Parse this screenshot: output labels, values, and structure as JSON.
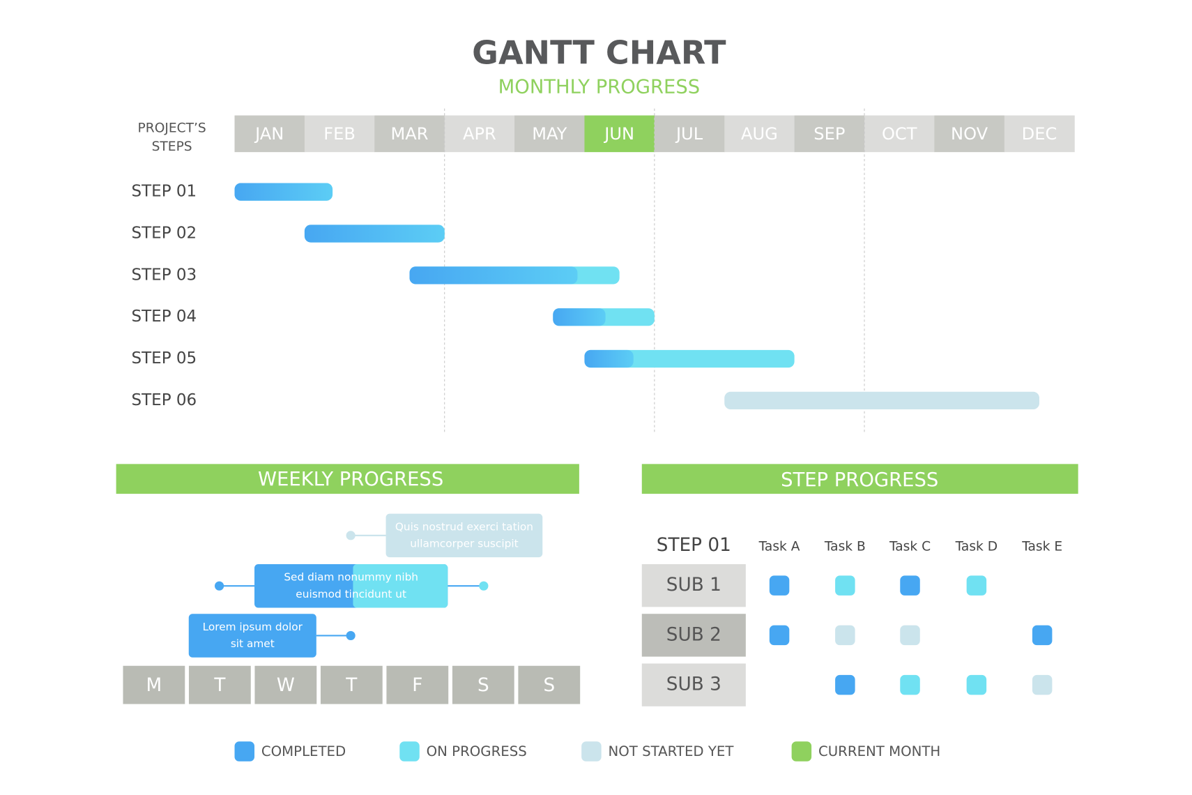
{
  "chart_data": {
    "type": "gantt",
    "title": "GANTT CHART",
    "subtitle": "MONTHLY PROGRESS",
    "row_header": [
      "PROJECT’S",
      "STEPS"
    ],
    "categories": [
      "JAN",
      "FEB",
      "MAR",
      "APR",
      "MAY",
      "JUN",
      "JUL",
      "AUG",
      "SEP",
      "OCT",
      "NOV",
      "DEC"
    ],
    "highlight_index": 5,
    "xlim": [
      0,
      12
    ],
    "grid_lines": [
      3,
      6,
      9
    ],
    "tasks": [
      {
        "name": "STEP 01",
        "start": 0,
        "end": 1.4,
        "done": 1.4,
        "status": 1
      },
      {
        "name": "STEP 02",
        "start": 1,
        "end": 3,
        "done": 3,
        "status": 1
      },
      {
        "name": "STEP 03",
        "start": 2.5,
        "end": 5.5,
        "done": 4.9,
        "status": 1
      },
      {
        "name": "STEP 04",
        "start": 4.55,
        "end": 6,
        "done": 5.3,
        "status": 1
      },
      {
        "name": "STEP 05",
        "start": 5,
        "end": 8,
        "done": 5.7,
        "status": 1
      },
      {
        "name": "STEP 06",
        "start": 7,
        "end": 11.5,
        "done": 7,
        "status": 2
      }
    ]
  },
  "weekly_progress": {
    "title": "WEEKLY PROGRESS",
    "days": [
      "M",
      "T",
      "W",
      "T",
      "F",
      "S",
      "S"
    ],
    "notes": [
      {
        "lines": [
          "Lorem ipsum dolor",
          "sit amet"
        ]
      },
      {
        "lines": [
          "Sed diam nonummy nibh",
          "euismod tincidunt ut"
        ]
      },
      {
        "lines": [
          "Quis nostrud exerci tation",
          "ullamcorper suscipit"
        ]
      }
    ]
  },
  "step_progress": {
    "title": "STEP PROGRESS",
    "step": "STEP 01",
    "columns": [
      "Task A",
      "Task B",
      "Task C",
      "Task D",
      "Task E"
    ],
    "rows": [
      {
        "name": "SUB 1",
        "cells": [
          0,
          1,
          0,
          1,
          null
        ]
      },
      {
        "name": "SUB 2",
        "cells": [
          0,
          2,
          2,
          null,
          0
        ]
      },
      {
        "name": "SUB 3",
        "cells": [
          null,
          0,
          1,
          1,
          2
        ]
      }
    ]
  },
  "legend": [
    {
      "name": "COMPLETED",
      "color": "#47a7f2"
    },
    {
      "name": "ON PROGRESS",
      "color": "#70e1f2"
    },
    {
      "name": "NOT STARTED YET",
      "color": "#cbe4ec"
    },
    {
      "name": "CURRENT MONTH",
      "color": "#8fd15e"
    }
  ]
}
